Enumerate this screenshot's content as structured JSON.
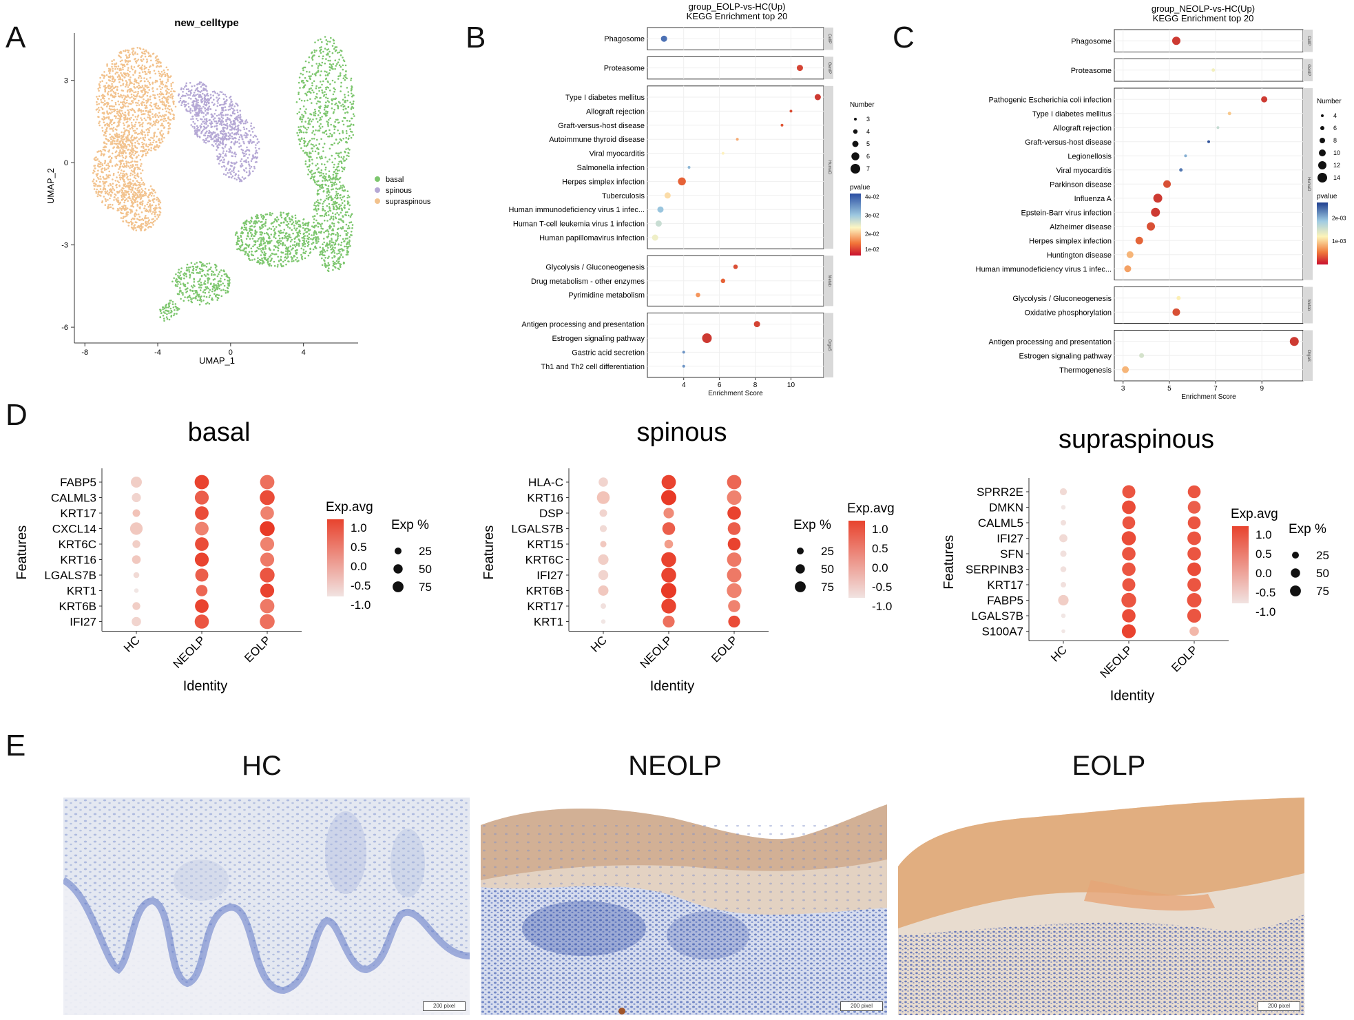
{
  "panels": {
    "A": "A",
    "B": "B",
    "C": "C",
    "D": "D",
    "E": "E"
  },
  "chart_data": [
    {
      "id": "A",
      "type": "scatter",
      "title": "new_celltype",
      "xlabel": "UMAP_1",
      "ylabel": "UMAP_2",
      "xlim": [
        -8.5,
        7
      ],
      "ylim": [
        -6.5,
        4.8
      ],
      "xticks": [
        -8,
        -4,
        0,
        4
      ],
      "yticks": [
        -6,
        -3,
        0,
        3
      ],
      "legend_position": "right",
      "series": [
        {
          "name": "basal",
          "color": "#7dc66e",
          "clusters": [
            {
              "cx": 5.2,
              "cy": 1.8,
              "rx": 1.6,
              "ry": 2.8,
              "n": 650
            },
            {
              "cx": 5.6,
              "cy": -2.2,
              "rx": 1.1,
              "ry": 1.8,
              "n": 450
            },
            {
              "cx": 2.5,
              "cy": -2.8,
              "rx": 2.3,
              "ry": 1.0,
              "n": 600
            },
            {
              "cx": -1.6,
              "cy": -4.4,
              "rx": 1.6,
              "ry": 0.8,
              "n": 300
            },
            {
              "cx": -3.4,
              "cy": -5.4,
              "rx": 0.6,
              "ry": 0.4,
              "n": 60
            }
          ]
        },
        {
          "name": "spinous",
          "color": "#b5a8d5",
          "clusters": [
            {
              "cx": -0.8,
              "cy": 1.6,
              "rx": 1.4,
              "ry": 1.0,
              "n": 400
            },
            {
              "cx": 0.4,
              "cy": 0.5,
              "rx": 1.2,
              "ry": 1.2,
              "n": 300
            },
            {
              "cx": -2.0,
              "cy": 2.4,
              "rx": 0.9,
              "ry": 0.6,
              "n": 150
            }
          ]
        },
        {
          "name": "supraspinous",
          "color": "#f2c28d",
          "clusters": [
            {
              "cx": -5.2,
              "cy": 2.2,
              "rx": 2.2,
              "ry": 2.0,
              "n": 1100
            },
            {
              "cx": -6.2,
              "cy": -0.4,
              "rx": 1.4,
              "ry": 1.4,
              "n": 500
            },
            {
              "cx": -5.0,
              "cy": -1.6,
              "rx": 1.2,
              "ry": 0.9,
              "n": 300
            }
          ]
        }
      ]
    },
    {
      "id": "B",
      "type": "scatter",
      "title": "group_EOLP-vs-HC(Up)",
      "subtitle": "KEGG Enrichment top 20",
      "xlabel": "Enrichment Score",
      "xlim": [
        2.2,
        11.6
      ],
      "xticks": [
        4,
        6,
        8,
        10
      ],
      "size_legend": {
        "title": "Number",
        "values": [
          3,
          4,
          5,
          6,
          7
        ]
      },
      "color_legend": {
        "title": "pvalue",
        "ticks": [
          "4e-02",
          "3e-02",
          "2e-02",
          "1e-02"
        ]
      },
      "groups": [
        {
          "label": "CellP",
          "terms": [
            {
              "term": "Phagosome",
              "x": 2.9,
              "n": 5,
              "p": 0.045
            }
          ]
        },
        {
          "label": "GenIP",
          "terms": [
            {
              "term": "Proteasome",
              "x": 10.5,
              "n": 5,
              "p": 0.005
            }
          ]
        },
        {
          "label": "HumaD",
          "terms": [
            {
              "term": "Type I diabetes mellitus",
              "x": 11.5,
              "n": 5,
              "p": 0.004
            },
            {
              "term": "Allograft rejection",
              "x": 10.0,
              "n": 3,
              "p": 0.006
            },
            {
              "term": "Graft-versus-host disease",
              "x": 9.5,
              "n": 3,
              "p": 0.007
            },
            {
              "term": "Autoimmune thyroid disease",
              "x": 7.0,
              "n": 3,
              "p": 0.015
            },
            {
              "term": "Viral myocarditis",
              "x": 6.2,
              "n": 3,
              "p": 0.022
            },
            {
              "term": "Salmonella infection",
              "x": 4.3,
              "n": 3,
              "p": 0.035
            },
            {
              "term": "Herpes simplex infection",
              "x": 3.9,
              "n": 6,
              "p": 0.008
            },
            {
              "term": "Tuberculosis",
              "x": 3.1,
              "n": 5,
              "p": 0.02
            },
            {
              "term": "Human immunodeficiency virus 1 infec...",
              "x": 2.7,
              "n": 5,
              "p": 0.033
            },
            {
              "term": "Human T-cell leukemia virus 1 infection",
              "x": 2.6,
              "n": 5,
              "p": 0.028
            },
            {
              "term": "Human papillomavirus infection",
              "x": 2.4,
              "n": 5,
              "p": 0.024
            }
          ]
        },
        {
          "label": "Metab",
          "terms": [
            {
              "term": "Glycolysis / Gluconeogenesis",
              "x": 6.9,
              "n": 4,
              "p": 0.006
            },
            {
              "term": "Drug metabolism - other enzymes",
              "x": 6.2,
              "n": 4,
              "p": 0.008
            },
            {
              "term": "Pyrimidine metabolism",
              "x": 4.8,
              "n": 4,
              "p": 0.013
            }
          ]
        },
        {
          "label": "OrgaS",
          "terms": [
            {
              "term": "Antigen processing and presentation",
              "x": 8.1,
              "n": 5,
              "p": 0.005
            },
            {
              "term": "Estrogen signaling pathway",
              "x": 5.3,
              "n": 7,
              "p": 0.004
            },
            {
              "term": "Gastric acid secretion",
              "x": 4.0,
              "n": 3,
              "p": 0.04
            },
            {
              "term": "Th1 and Th2 cell differentiation",
              "x": 4.0,
              "n": 3,
              "p": 0.04
            }
          ]
        }
      ]
    },
    {
      "id": "C",
      "type": "scatter",
      "title": "group_NEOLP-vs-HC(Up)",
      "subtitle": "KEGG Enrichment top 20",
      "xlabel": "Enrichment Score",
      "xlim": [
        2.8,
        10.6
      ],
      "xticks": [
        3,
        5,
        7,
        9
      ],
      "size_legend": {
        "title": "Number",
        "values": [
          4,
          6,
          8,
          10,
          12,
          14
        ]
      },
      "color_legend": {
        "title": "pvalue",
        "ticks": [
          "2e-03",
          "1e-03"
        ]
      },
      "groups": [
        {
          "label": "CellP",
          "terms": [
            {
              "term": "Phagosome",
              "x": 5.3,
              "n": 12,
              "p": 0.0002
            }
          ]
        },
        {
          "label": "GenIP",
          "terms": [
            {
              "term": "Proteasome",
              "x": 6.9,
              "n": 5,
              "p": 0.0012
            }
          ]
        },
        {
          "label": "HumaD",
          "terms": [
            {
              "term": "Pathogenic Escherichia coli infection",
              "x": 9.1,
              "n": 9,
              "p": 0.0002
            },
            {
              "term": "Type I diabetes mellitus",
              "x": 7.6,
              "n": 5,
              "p": 0.0009
            },
            {
              "term": "Allograft rejection",
              "x": 7.1,
              "n": 4,
              "p": 0.0015
            },
            {
              "term": "Graft-versus-host disease",
              "x": 6.7,
              "n": 4,
              "p": 0.0024
            },
            {
              "term": "Legionellosis",
              "x": 5.7,
              "n": 4,
              "p": 0.0019
            },
            {
              "term": "Viral myocarditis",
              "x": 5.5,
              "n": 5,
              "p": 0.0022
            },
            {
              "term": "Parkinson disease",
              "x": 4.9,
              "n": 11,
              "p": 0.0003
            },
            {
              "term": "Influenza A",
              "x": 4.5,
              "n": 13,
              "p": 0.0002
            },
            {
              "term": "Epstein-Barr virus infection",
              "x": 4.4,
              "n": 13,
              "p": 0.0002
            },
            {
              "term": "Alzheimer disease",
              "x": 4.2,
              "n": 12,
              "p": 0.0003
            },
            {
              "term": "Herpes simplex infection",
              "x": 3.7,
              "n": 11,
              "p": 0.0004
            },
            {
              "term": "Huntington disease",
              "x": 3.3,
              "n": 10,
              "p": 0.0008
            },
            {
              "term": "Human immunodeficiency virus 1 infec...",
              "x": 3.2,
              "n": 10,
              "p": 0.0007
            }
          ]
        },
        {
          "label": "Metab",
          "terms": [
            {
              "term": "Glycolysis / Gluconeogenesis",
              "x": 5.4,
              "n": 6,
              "p": 0.0011
            },
            {
              "term": "Oxidative phosphorylation",
              "x": 5.3,
              "n": 11,
              "p": 0.0003
            }
          ]
        },
        {
          "label": "OrgaS",
          "terms": [
            {
              "term": "Antigen processing and presentation",
              "x": 10.4,
              "n": 13,
              "p": 0.0002
            },
            {
              "term": "Estrogen signaling pathway",
              "x": 3.8,
              "n": 7,
              "p": 0.0014
            },
            {
              "term": "Thermogenesis",
              "x": 3.1,
              "n": 10,
              "p": 0.0008
            }
          ]
        }
      ]
    },
    {
      "id": "D1",
      "type": "scatter",
      "title": "basal",
      "xlabel": "Identity",
      "ylabel": "Features",
      "categories": [
        "HC",
        "NEOLP",
        "EOLP"
      ],
      "features": [
        "FABP5",
        "CALML3",
        "KRT17",
        "CXCL14",
        "KRT6C",
        "KRT16",
        "LGALS7B",
        "KRT1",
        "KRT6B",
        "IFI27"
      ],
      "exp_avg": [
        [
          -0.6,
          1.2,
          0.7
        ],
        [
          -0.7,
          0.9,
          1.1
        ],
        [
          -0.4,
          1.1,
          0.5
        ],
        [
          -0.5,
          0.5,
          1.3
        ],
        [
          -0.6,
          1.1,
          0.5
        ],
        [
          -0.5,
          1.2,
          0.6
        ],
        [
          -0.8,
          0.9,
          1.0
        ],
        [
          -1.0,
          0.8,
          1.2
        ],
        [
          -0.6,
          1.2,
          0.6
        ],
        [
          -0.7,
          1.0,
          0.7
        ]
      ],
      "exp_pct": [
        [
          45,
          80,
          80
        ],
        [
          28,
          75,
          88
        ],
        [
          18,
          72,
          70
        ],
        [
          60,
          72,
          88
        ],
        [
          20,
          72,
          75
        ],
        [
          25,
          75,
          75
        ],
        [
          10,
          65,
          85
        ],
        [
          5,
          48,
          75
        ],
        [
          20,
          72,
          80
        ],
        [
          30,
          78,
          88
        ]
      ],
      "color_legend": {
        "title": "Exp.avg",
        "ticks": [
          "1.0",
          "0.5",
          "0.0",
          "-0.5",
          "-1.0"
        ]
      },
      "size_legend": {
        "title": "Exp %",
        "values": [
          25,
          50,
          75
        ]
      }
    },
    {
      "id": "D2",
      "type": "scatter",
      "title": "spinous",
      "xlabel": "Identity",
      "ylabel": "Features",
      "categories": [
        "HC",
        "NEOLP",
        "EOLP"
      ],
      "features": [
        "HLA-C",
        "KRT16",
        "DSP",
        "LGALS7B",
        "KRT15",
        "KRT6C",
        "IFI27",
        "KRT6B",
        "KRT17",
        "KRT1"
      ],
      "exp_avg": [
        [
          -0.7,
          1.2,
          0.8
        ],
        [
          -0.4,
          1.3,
          0.5
        ],
        [
          -0.7,
          0.4,
          1.2
        ],
        [
          -0.8,
          0.9,
          0.9
        ],
        [
          -0.5,
          0.2,
          1.2
        ],
        [
          -0.6,
          1.2,
          0.6
        ],
        [
          -0.7,
          1.2,
          0.6
        ],
        [
          -0.5,
          1.3,
          0.5
        ],
        [
          -0.9,
          1.2,
          0.5
        ],
        [
          -1.0,
          0.7,
          1.1
        ]
      ],
      "exp_pct": [
        [
          30,
          80,
          80
        ],
        [
          62,
          90,
          82
        ],
        [
          18,
          40,
          70
        ],
        [
          15,
          62,
          62
        ],
        [
          12,
          25,
          62
        ],
        [
          40,
          88,
          80
        ],
        [
          35,
          88,
          82
        ],
        [
          38,
          92,
          85
        ],
        [
          8,
          85,
          55
        ],
        [
          5,
          52,
          52
        ]
      ],
      "color_legend": {
        "title": "Exp.avg",
        "ticks": [
          "1.0",
          "0.5",
          "0.0",
          "-0.5",
          "-1.0"
        ]
      },
      "size_legend": {
        "title": "Exp %",
        "values": [
          25,
          50,
          75
        ]
      }
    },
    {
      "id": "D3",
      "type": "scatter",
      "title": "supraspinous",
      "xlabel": "Identity",
      "ylabel": "Features",
      "categories": [
        "HC",
        "NEOLP",
        "EOLP"
      ],
      "features": [
        "SPRR2E",
        "DMKN",
        "CALML5",
        "IFI27",
        "SFN",
        "SERPINB3",
        "KRT17",
        "FABP5",
        "LGALS7B",
        "S100A7"
      ],
      "exp_avg": [
        [
          -0.8,
          1.0,
          1.0
        ],
        [
          -1.0,
          1.1,
          0.9
        ],
        [
          -0.9,
          1.0,
          1.0
        ],
        [
          -0.8,
          1.1,
          1.0
        ],
        [
          -0.9,
          1.0,
          1.0
        ],
        [
          -0.9,
          1.0,
          1.1
        ],
        [
          -0.9,
          1.0,
          1.0
        ],
        [
          -0.6,
          1.0,
          1.0
        ],
        [
          -1.0,
          1.1,
          1.0
        ],
        [
          -1.0,
          1.2,
          -0.2
        ]
      ],
      "exp_pct": [
        [
          15,
          65,
          62
        ],
        [
          5,
          72,
          62
        ],
        [
          8,
          62,
          62
        ],
        [
          22,
          78,
          72
        ],
        [
          12,
          70,
          70
        ],
        [
          10,
          70,
          72
        ],
        [
          8,
          66,
          72
        ],
        [
          40,
          86,
          82
        ],
        [
          5,
          70,
          75
        ],
        [
          3,
          75,
          30
        ]
      ],
      "color_legend": {
        "title": "Exp.avg",
        "ticks": [
          "1.0",
          "0.5",
          "0.0",
          "-0.5",
          "-1.0"
        ]
      },
      "size_legend": {
        "title": "Exp %",
        "values": [
          25,
          50,
          75
        ]
      }
    }
  ],
  "histology": {
    "titles": [
      "HC",
      "NEOLP",
      "EOLP"
    ],
    "scalebar": "200 pixel"
  }
}
